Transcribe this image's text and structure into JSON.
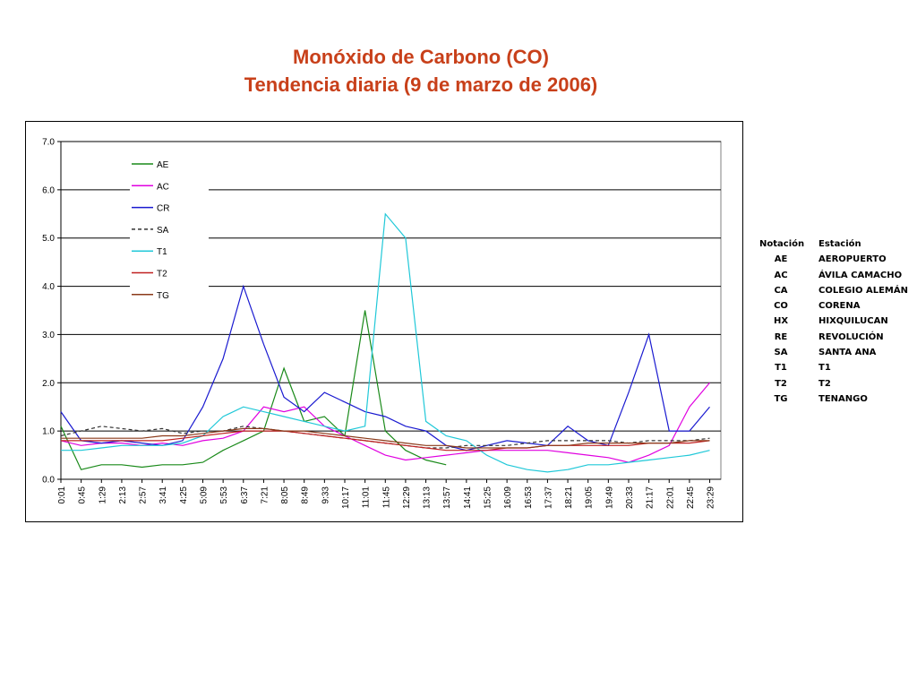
{
  "title_line1": "Monóxido de Carbono (CO)",
  "title_line2": "Tendencia diaria (9 de marzo de 2006)",
  "chart_data": {
    "type": "line",
    "ylim": [
      0,
      7
    ],
    "yticks": [
      "0.0",
      "1.0",
      "2.0",
      "3.0",
      "4.0",
      "5.0",
      "6.0",
      "7.0"
    ],
    "categories": [
      "0:01",
      "0:45",
      "1:29",
      "2:13",
      "2:57",
      "3:41",
      "4:25",
      "5:09",
      "5:53",
      "6:37",
      "7:21",
      "8:05",
      "8:49",
      "9:33",
      "10:17",
      "11:01",
      "11:45",
      "12:29",
      "13:13",
      "13:57",
      "14:41",
      "15:25",
      "16:09",
      "16:53",
      "17:37",
      "18:21",
      "19:05",
      "19:49",
      "20:33",
      "21:17",
      "22:01",
      "22:45",
      "23:29"
    ],
    "grid": "horizontal",
    "legend_placement": "top-left",
    "series": [
      {
        "name": "AE",
        "color": "#1a8a1a",
        "dash": "",
        "values": [
          1.1,
          0.2,
          0.3,
          0.3,
          0.25,
          0.3,
          0.3,
          0.35,
          0.6,
          0.8,
          1.0,
          2.3,
          1.2,
          1.3,
          0.9,
          3.5,
          1.0,
          0.6,
          0.4,
          0.3,
          null,
          null,
          null,
          null,
          null,
          null,
          null,
          null,
          null,
          null,
          null,
          null,
          null
        ]
      },
      {
        "name": "AC",
        "color": "#e000e0",
        "dash": "",
        "values": [
          0.8,
          0.7,
          0.75,
          0.75,
          0.7,
          0.75,
          0.7,
          0.8,
          0.85,
          1.0,
          1.5,
          1.4,
          1.5,
          1.1,
          0.9,
          0.7,
          0.5,
          0.4,
          0.45,
          0.5,
          0.55,
          0.6,
          0.6,
          0.6,
          0.6,
          0.55,
          0.5,
          0.45,
          0.35,
          0.5,
          0.7,
          1.5,
          2.0
        ]
      },
      {
        "name": "CR",
        "color": "#1a1ad0",
        "dash": "",
        "values": [
          1.4,
          0.8,
          0.75,
          0.8,
          0.75,
          0.7,
          0.8,
          1.5,
          2.5,
          4.0,
          2.8,
          1.7,
          1.4,
          1.8,
          1.6,
          1.4,
          1.3,
          1.1,
          1.0,
          0.7,
          0.6,
          0.7,
          0.8,
          0.75,
          0.7,
          1.1,
          0.8,
          0.7,
          1.8,
          3.0,
          1.0,
          1.0,
          1.5
        ]
      },
      {
        "name": "SA",
        "color": "#333333",
        "dash": "4,3",
        "values": [
          0.9,
          1.0,
          1.1,
          1.05,
          1.0,
          1.05,
          0.95,
          1.0,
          1.0,
          1.1,
          1.05,
          1.0,
          0.95,
          0.9,
          0.85,
          0.8,
          0.75,
          0.7,
          0.65,
          0.65,
          0.7,
          0.7,
          0.7,
          0.75,
          0.8,
          0.8,
          0.8,
          0.8,
          0.75,
          0.8,
          0.8,
          0.8,
          0.85
        ]
      },
      {
        "name": "T1",
        "color": "#20c8d8",
        "dash": "",
        "values": [
          0.6,
          0.6,
          0.65,
          0.7,
          0.7,
          0.7,
          0.75,
          0.9,
          1.3,
          1.5,
          1.4,
          1.3,
          1.2,
          1.1,
          1.0,
          1.1,
          5.5,
          5.0,
          1.2,
          0.9,
          0.8,
          0.5,
          0.3,
          0.2,
          0.15,
          0.2,
          0.3,
          0.3,
          0.35,
          0.4,
          0.45,
          0.5,
          0.6
        ]
      },
      {
        "name": "T2",
        "color": "#c02020",
        "dash": "",
        "values": [
          0.8,
          0.8,
          0.8,
          0.8,
          0.8,
          0.8,
          0.85,
          0.9,
          0.95,
          1.0,
          1.0,
          1.0,
          0.95,
          0.9,
          0.85,
          0.8,
          0.75,
          0.7,
          0.65,
          0.6,
          0.6,
          0.6,
          0.65,
          0.65,
          0.7,
          0.7,
          0.7,
          0.7,
          0.7,
          0.75,
          0.75,
          0.75,
          0.8
        ]
      },
      {
        "name": "TG",
        "color": "#8b3a1a",
        "dash": "",
        "values": [
          0.85,
          0.85,
          0.85,
          0.85,
          0.85,
          0.9,
          0.9,
          0.95,
          1.0,
          1.05,
          1.05,
          1.0,
          1.0,
          0.95,
          0.9,
          0.85,
          0.8,
          0.75,
          0.7,
          0.7,
          0.65,
          0.65,
          0.65,
          0.65,
          0.7,
          0.7,
          0.75,
          0.75,
          0.75,
          0.75,
          0.75,
          0.8,
          0.8
        ]
      }
    ]
  },
  "station_table": {
    "header": {
      "code": "Notación",
      "name": "Estación"
    },
    "rows": [
      {
        "code": "AE",
        "name": "AEROPUERTO"
      },
      {
        "code": "AC",
        "name": "ÁVILA CAMACHO"
      },
      {
        "code": "CA",
        "name": "COLEGIO ALEMÁN"
      },
      {
        "code": "CO",
        "name": "CORENA"
      },
      {
        "code": "HX",
        "name": "HIXQUILUCAN"
      },
      {
        "code": "RE",
        "name": "REVOLUCIÓN"
      },
      {
        "code": "SA",
        "name": "SANTA ANA"
      },
      {
        "code": "T1",
        "name": "T1"
      },
      {
        "code": "T2",
        "name": "T2"
      },
      {
        "code": "TG",
        "name": "TENANGO"
      }
    ]
  }
}
